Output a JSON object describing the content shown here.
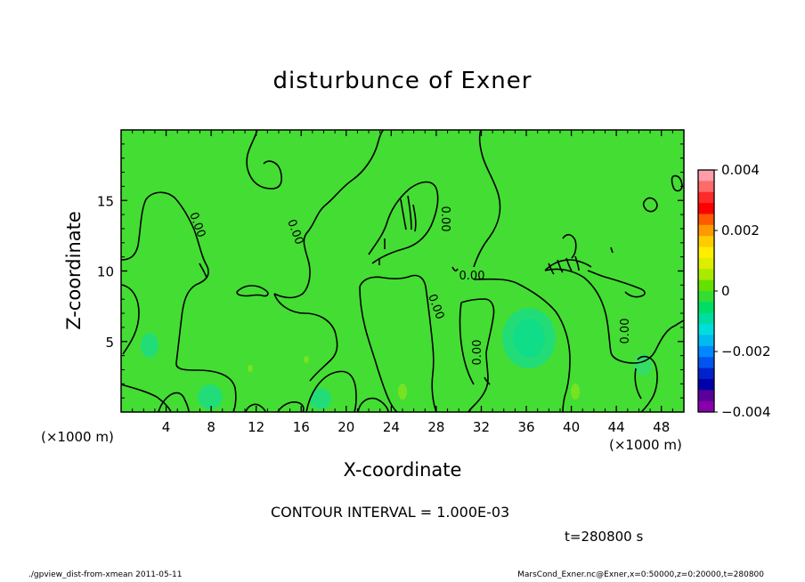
{
  "chart_data": {
    "type": "heatmap",
    "title": "disturbunce of Exner",
    "xlabel": "X-coordinate",
    "ylabel": "Z-coordinate",
    "x_unit": "(×1000 m)",
    "y_unit": "(×1000 m)",
    "xlim": [
      0,
      50
    ],
    "ylim": [
      0,
      20
    ],
    "xticks": [
      4,
      8,
      12,
      16,
      20,
      24,
      28,
      32,
      36,
      40,
      44,
      48
    ],
    "yticks": [
      5,
      10,
      15
    ],
    "colorbar": {
      "ticks": [
        "0.004",
        "0.002",
        "0",
        "−0.002",
        "−0.004"
      ],
      "range": [
        -0.004,
        0.004
      ],
      "colors": [
        "#ff9da8",
        "#ff6a6a",
        "#ff2a2a",
        "#ff0000",
        "#ff5a00",
        "#ff9900",
        "#ffcc00",
        "#ffee00",
        "#ddee00",
        "#aaea00",
        "#66e000",
        "#33dd33",
        "#00dd66",
        "#00dda0",
        "#00dddd",
        "#00bbee",
        "#0088ff",
        "#0055ee",
        "#0022cc",
        "#0000aa",
        "#5a0099",
        "#8800aa"
      ]
    },
    "contour_labels": [
      "0.00",
      "0.00",
      "0.00",
      "0.00",
      "0.00",
      "0.00",
      "0.00"
    ],
    "contour_interval": "CONTOUR INTERVAL = 1.000E-03",
    "time": "t=280800 s"
  },
  "footer": {
    "left": "./gpview_dist-from-xmean  2011-05-11",
    "right": "MarsCond_Exner.nc@Exner,x=0:50000,z=0:20000,t=280800"
  }
}
